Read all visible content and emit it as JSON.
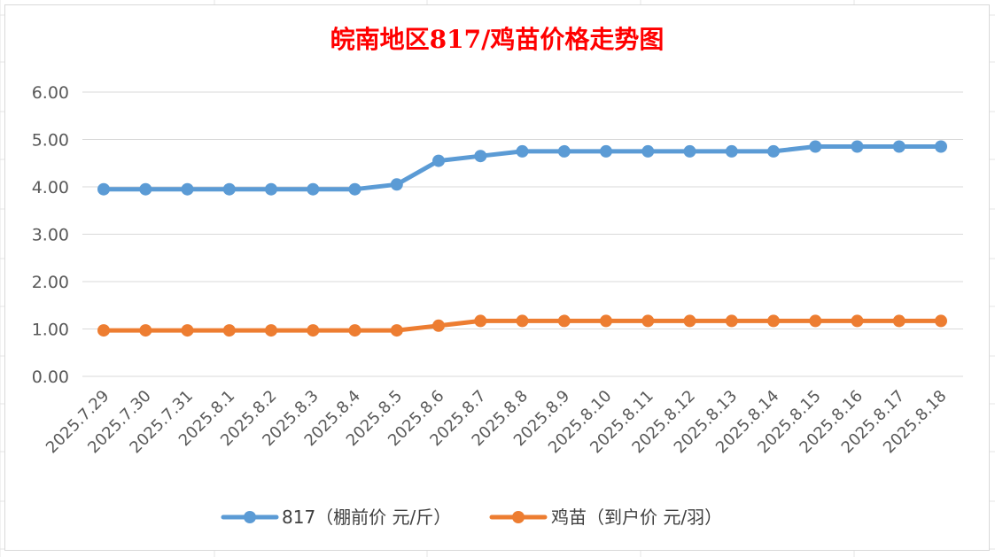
{
  "chart_data": {
    "type": "line",
    "title": "皖南地区817/鸡苗价格走势图",
    "categories": [
      "2025.7.29",
      "2025.7.30",
      "2025.7.31",
      "2025.8.1",
      "2025.8.2",
      "2025.8.3",
      "2025.8.4",
      "2025.8.5",
      "2025.8.6",
      "2025.8.7",
      "2025.8.8",
      "2025.8.9",
      "2025.8.10",
      "2025.8.11",
      "2025.8.12",
      "2025.8.13",
      "2025.8.14",
      "2025.8.15",
      "2025.8.16",
      "2025.8.17",
      "2025.8.18"
    ],
    "series": [
      {
        "name": "817（棚前价 元/斤）",
        "color": "#5b9bd5",
        "values": [
          3.95,
          3.95,
          3.95,
          3.95,
          3.95,
          3.95,
          3.95,
          4.05,
          4.55,
          4.65,
          4.75,
          4.75,
          4.75,
          4.75,
          4.75,
          4.75,
          4.75,
          4.85,
          4.85,
          4.85,
          4.85
        ]
      },
      {
        "name": "鸡苗（到户价 元/羽）",
        "color": "#ed7d31",
        "values": [
          0.97,
          0.97,
          0.97,
          0.97,
          0.97,
          0.97,
          0.97,
          0.97,
          1.07,
          1.17,
          1.17,
          1.17,
          1.17,
          1.17,
          1.17,
          1.17,
          1.17,
          1.17,
          1.17,
          1.17,
          1.17
        ]
      }
    ],
    "y_ticks": [
      "0.00",
      "1.00",
      "2.00",
      "3.00",
      "4.00",
      "5.00",
      "6.00"
    ],
    "ylim": [
      0,
      6
    ],
    "grid": true,
    "legend": "bottom"
  }
}
